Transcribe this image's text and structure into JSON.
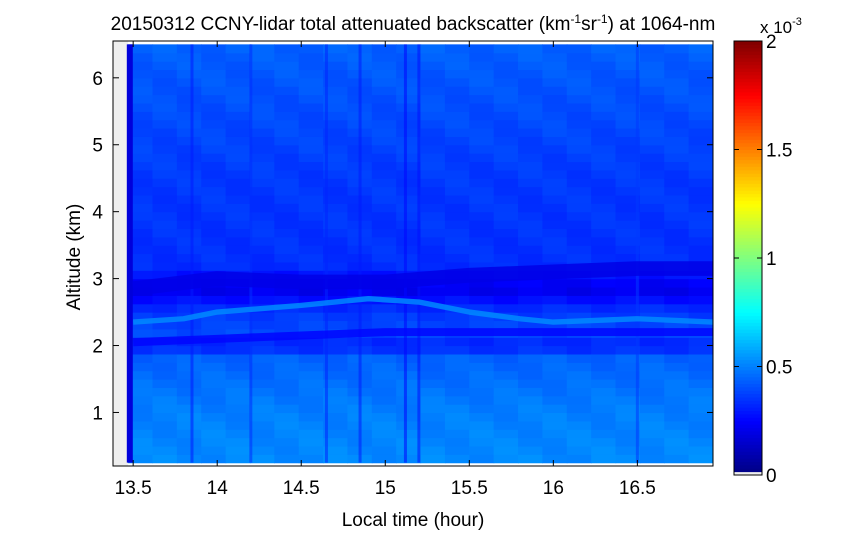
{
  "chart_data": {
    "type": "heatmap",
    "title": {
      "prefix": "20150312 CCNY-lidar total attenuated backscatter (km",
      "sup1": "-1",
      "middle": "sr",
      "sup2": "-1",
      "suffix": ") at 1064-nm"
    },
    "xlabel": "Local time (hour)",
    "ylabel": "Altitude (km)",
    "xlim": [
      13.38,
      16.95
    ],
    "ylim": [
      0.2,
      6.55
    ],
    "x_ticks": [
      13.5,
      14,
      14.5,
      15,
      15.5,
      16,
      16.5
    ],
    "x_tick_labels": [
      "13.5",
      "14",
      "14.5",
      "15",
      "15.5",
      "16",
      "16.5"
    ],
    "y_ticks": [
      1,
      2,
      3,
      4,
      5,
      6
    ],
    "y_tick_labels": [
      "1",
      "2",
      "3",
      "4",
      "5",
      "6"
    ],
    "data_x_range": [
      13.47,
      16.95
    ],
    "data_y_range": [
      0.25,
      6.5
    ],
    "colorbar": {
      "colormap": "jet",
      "clim": [
        0,
        0.002
      ],
      "ticks": [
        0,
        0.0005,
        0.001,
        0.0015,
        0.002
      ],
      "tick_labels": [
        "0",
        "0.5",
        "1",
        "1.5",
        "2"
      ],
      "exponent_base": "x 10",
      "exponent": "-3",
      "underflow_color": "#eeeeee"
    },
    "background_value": 0.00042,
    "profile": [
      {
        "alt": 0.25,
        "value": 0.00052
      },
      {
        "alt": 1.0,
        "value": 0.0005
      },
      {
        "alt": 1.85,
        "value": 0.00044
      },
      {
        "alt": 2.0,
        "value": 0.00028
      },
      {
        "alt": 2.15,
        "value": 0.0004
      },
      {
        "alt": 2.5,
        "value": 0.00036
      },
      {
        "alt": 2.85,
        "value": 0.0002
      },
      {
        "alt": 3.2,
        "value": 0.00034
      },
      {
        "alt": 4.5,
        "value": 0.00036
      },
      {
        "alt": 6.5,
        "value": 0.00044
      }
    ],
    "features": [
      {
        "name": "aerosol-layer-top",
        "value": 0.0002,
        "thickness_km": 0.22,
        "path": [
          [
            13.5,
            2.85
          ],
          [
            14.0,
            3.0
          ],
          [
            14.5,
            2.95
          ],
          [
            15.0,
            2.95
          ],
          [
            15.5,
            3.05
          ],
          [
            16.0,
            3.1
          ],
          [
            16.5,
            3.15
          ],
          [
            16.95,
            3.15
          ]
        ]
      },
      {
        "name": "bright-layer",
        "value": 0.00052,
        "thickness_km": 0.08,
        "path": [
          [
            13.5,
            2.35
          ],
          [
            13.8,
            2.4
          ],
          [
            14.0,
            2.5
          ],
          [
            14.5,
            2.6
          ],
          [
            14.9,
            2.7
          ],
          [
            15.2,
            2.65
          ],
          [
            15.5,
            2.5
          ],
          [
            15.8,
            2.4
          ],
          [
            16.0,
            2.35
          ],
          [
            16.5,
            2.4
          ],
          [
            16.95,
            2.35
          ]
        ]
      },
      {
        "name": "dark-band-lower",
        "value": 0.00026,
        "thickness_km": 0.12,
        "path": [
          [
            13.5,
            2.05
          ],
          [
            14.0,
            2.1
          ],
          [
            14.5,
            2.15
          ],
          [
            15.0,
            2.2
          ],
          [
            15.5,
            2.2
          ],
          [
            16.0,
            2.2
          ],
          [
            16.95,
            2.2
          ]
        ]
      }
    ],
    "time_columns": [
      {
        "t": 13.48,
        "value": 0.00018
      },
      {
        "t": 13.85,
        "value": 0.0003
      },
      {
        "t": 14.2,
        "value": 0.00034
      },
      {
        "t": 14.65,
        "value": 0.00032
      },
      {
        "t": 14.85,
        "value": 0.0003
      },
      {
        "t": 15.12,
        "value": 0.00026
      },
      {
        "t": 15.2,
        "value": 0.00028
      },
      {
        "t": 16.5,
        "value": 0.00036
      }
    ]
  }
}
